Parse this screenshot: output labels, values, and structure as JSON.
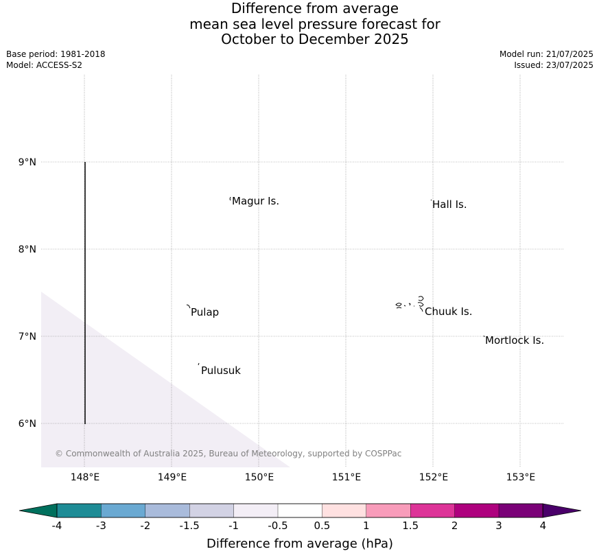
{
  "title": {
    "line1": "Difference from average",
    "line2": "mean sea level pressure forecast for",
    "line3": "October to December 2025"
  },
  "meta": {
    "base_period": "Base period: 1981-2018",
    "model": "Model: ACCESS-S2",
    "model_run": "Model run: 21/07/2025",
    "issued": "Issued: 23/07/2025"
  },
  "map": {
    "lat_labels": [
      "9°N",
      "8°N",
      "7°N",
      "6°N"
    ],
    "lon_labels": [
      "148°E",
      "149°E",
      "150°E",
      "151°E",
      "152°E",
      "153°E"
    ],
    "places": [
      "Magur Is.",
      "Hall Is.",
      "Pulap",
      "Chuuk Is.",
      "Mortlock Is.",
      "Pulusuk"
    ],
    "shaded_region_color": "#f2eef5",
    "copyright": "© Commonwealth of Australia 2025, Bureau of Meteorology, supported by COSPPac"
  },
  "colorbar": {
    "label": "Difference from average (hPa)",
    "ticks": [
      "-4",
      "-3",
      "-2",
      "-1.5",
      "-1",
      "-0.5",
      "0.5",
      "1",
      "1.5",
      "2",
      "3",
      "4"
    ],
    "colors": [
      "#1e8c96",
      "#6aa9d2",
      "#a9bbdb",
      "#d2d2e4",
      "#f3eef6",
      "#ffffff",
      "#ffe1e1",
      "#f89cba",
      "#dd3498",
      "#ae017e",
      "#7a0177"
    ],
    "under_color": "#00705d",
    "over_color": "#4a006a"
  }
}
